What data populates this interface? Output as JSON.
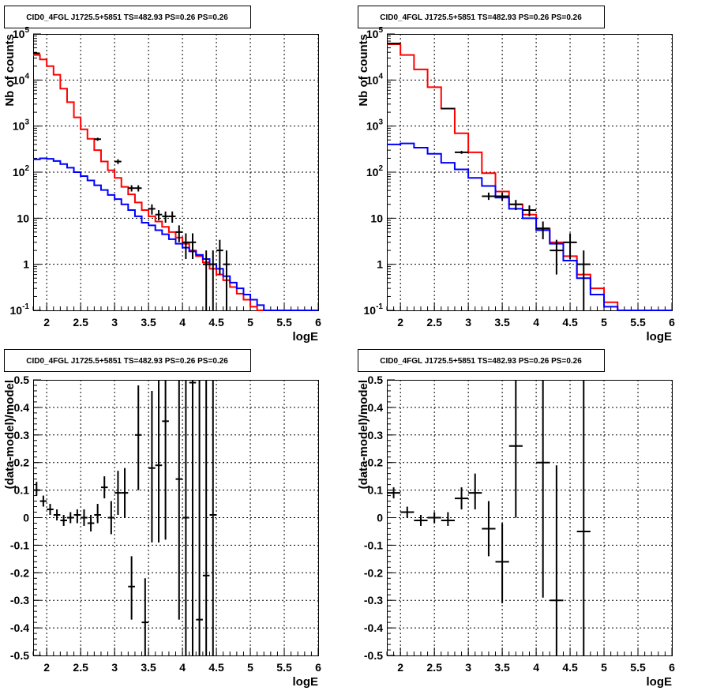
{
  "chart_data": [
    {
      "type": "histogram",
      "title": "CID0_4FGL J1725.5+5851 TS=482.93 PS=0.26 PS=0.26",
      "xlabel": "logE",
      "ylabel": "Nb of counts",
      "xlim": [
        1.8,
        6.0
      ],
      "ylim": [
        0.1,
        100000
      ],
      "yscale": "log",
      "grid": true,
      "x_ticks": [
        "2",
        "2.5",
        "3",
        "3.5",
        "4",
        "4.5",
        "5",
        "5.5",
        "6"
      ],
      "y_ticks": [
        "10^-1",
        "1",
        "10",
        "10^2",
        "10^3",
        "10^4",
        "10^5"
      ],
      "bin_edges": [
        1.8,
        1.9,
        2.0,
        2.1,
        2.2,
        2.3,
        2.4,
        2.5,
        2.6,
        2.7,
        2.8,
        2.9,
        3.0,
        3.1,
        3.2,
        3.3,
        3.4,
        3.5,
        3.6,
        3.7,
        3.8,
        3.9,
        4.0,
        4.1,
        4.2,
        4.3,
        4.4,
        4.5,
        4.6,
        4.7,
        4.8,
        4.9,
        5.0,
        5.1,
        5.2,
        5.3,
        5.4,
        5.5,
        5.6,
        5.7,
        5.8,
        5.9,
        6.0
      ],
      "series": [
        {
          "color": "#ff0000",
          "style": "step",
          "values": [
            35000,
            28000,
            20000,
            13000,
            6500,
            3300,
            1550,
            850,
            530,
            300,
            170,
            110,
            75,
            48,
            33,
            22,
            15,
            11,
            8.5,
            6.5,
            5,
            3.8,
            2.8,
            2.0,
            1.5,
            1.1,
            0.8,
            0.6,
            0.45,
            0.32,
            0.23,
            0.17,
            0.12,
            0.1,
            0.1,
            0.1,
            0.1,
            0.1,
            0.1,
            0.1,
            0.1,
            0.1
          ]
        },
        {
          "color": "#0000ff",
          "style": "step",
          "values": [
            190,
            200,
            195,
            175,
            150,
            125,
            100,
            82,
            66,
            52,
            41,
            32,
            26,
            20,
            15,
            11,
            8,
            7,
            5.5,
            4.5,
            3.5,
            2.8,
            2.3,
            1.9,
            1.6,
            1.3,
            1.0,
            0.8,
            0.55,
            0.4,
            0.3,
            0.22,
            0.17,
            0.13,
            0.1,
            0.1,
            0.1,
            0.1,
            0.1,
            0.1,
            0.1,
            0.1
          ]
        }
      ],
      "points": [
        {
          "x": 1.85,
          "y": 38000,
          "xerr": 0.05,
          "ylo": 37000,
          "yhi": 39000
        },
        {
          "x": 2.75,
          "y": 520,
          "xerr": 0.05,
          "ylo": 480,
          "yhi": 560
        },
        {
          "x": 3.05,
          "y": 170,
          "xerr": 0.05,
          "ylo": 150,
          "yhi": 190
        },
        {
          "x": 3.25,
          "y": 45,
          "xerr": 0.05,
          "ylo": 38,
          "yhi": 52
        },
        {
          "x": 3.35,
          "y": 45,
          "xerr": 0.05,
          "ylo": 38,
          "yhi": 52
        },
        {
          "x": 3.55,
          "y": 16,
          "xerr": 0.05,
          "ylo": 12,
          "yhi": 20
        },
        {
          "x": 3.65,
          "y": 12,
          "xerr": 0.05,
          "ylo": 9,
          "yhi": 15
        },
        {
          "x": 3.75,
          "y": 11,
          "xerr": 0.05,
          "ylo": 8,
          "yhi": 14
        },
        {
          "x": 3.85,
          "y": 11,
          "xerr": 0.05,
          "ylo": 8,
          "yhi": 14
        },
        {
          "x": 3.95,
          "y": 5,
          "xerr": 0.05,
          "ylo": 3,
          "yhi": 7
        },
        {
          "x": 4.05,
          "y": 3,
          "xerr": 0.05,
          "ylo": 1.3,
          "yhi": 4.7
        },
        {
          "x": 4.15,
          "y": 3,
          "xerr": 0.05,
          "ylo": 1.3,
          "yhi": 4.7
        },
        {
          "x": 4.35,
          "y": 1,
          "xerr": 0.05,
          "ylo": 0.1,
          "yhi": 2
        },
        {
          "x": 4.45,
          "y": 1,
          "xerr": 0.05,
          "ylo": 0.1,
          "yhi": 2
        },
        {
          "x": 4.55,
          "y": 2,
          "xerr": 0.05,
          "ylo": 0.6,
          "yhi": 3.4
        },
        {
          "x": 4.65,
          "y": 1,
          "xerr": 0.05,
          "ylo": 0.1,
          "yhi": 2
        }
      ]
    },
    {
      "type": "histogram",
      "title": "CID0_4FGL J1725.5+5851 TS=482.93 PS=0.26 PS=0.26",
      "xlabel": "logE",
      "ylabel": "Nb of counts",
      "xlim": [
        1.8,
        6.0
      ],
      "ylim": [
        0.1,
        100000
      ],
      "yscale": "log",
      "grid": true,
      "x_ticks": [
        "2",
        "2.5",
        "3",
        "3.5",
        "4",
        "4.5",
        "5",
        "5.5",
        "6"
      ],
      "y_ticks": [
        "10^-1",
        "1",
        "10",
        "10^2",
        "10^3",
        "10^4",
        "10^5"
      ],
      "bin_edges": [
        1.8,
        2.0,
        2.2,
        2.4,
        2.6,
        2.8,
        3.0,
        3.2,
        3.4,
        3.6,
        3.8,
        4.0,
        4.2,
        4.4,
        4.6,
        4.8,
        5.0,
        5.2,
        5.4,
        5.6,
        5.8,
        6.0
      ],
      "series": [
        {
          "color": "#ff0000",
          "style": "step",
          "values": [
            60000,
            35000,
            17000,
            7000,
            2400,
            700,
            270,
            95,
            38,
            20,
            12,
            6,
            3,
            1.5,
            0.6,
            0.3,
            0.15,
            0.1,
            0.1,
            0.1,
            0.1
          ]
        },
        {
          "color": "#0000ff",
          "style": "step",
          "values": [
            400,
            420,
            340,
            250,
            160,
            115,
            75,
            50,
            28,
            16,
            10,
            5.5,
            2.8,
            1.2,
            0.5,
            0.22,
            0.12,
            0.1,
            0.1,
            0.1,
            0.1
          ]
        }
      ],
      "points": [
        {
          "x": 1.9,
          "y": 62000,
          "xerr": 0.1,
          "ylo": 61000,
          "yhi": 63000
        },
        {
          "x": 2.7,
          "y": 2400,
          "xerr": 0.1,
          "ylo": 2350,
          "yhi": 2450
        },
        {
          "x": 2.9,
          "y": 270,
          "xerr": 0.1,
          "ylo": 250,
          "yhi": 290
        },
        {
          "x": 3.3,
          "y": 30,
          "xerr": 0.1,
          "ylo": 25,
          "yhi": 36
        },
        {
          "x": 3.5,
          "y": 30,
          "xerr": 0.1,
          "ylo": 24,
          "yhi": 36
        },
        {
          "x": 3.7,
          "y": 20,
          "xerr": 0.1,
          "ylo": 15,
          "yhi": 25
        },
        {
          "x": 3.9,
          "y": 15,
          "xerr": 0.1,
          "ylo": 11,
          "yhi": 19
        },
        {
          "x": 4.1,
          "y": 6,
          "xerr": 0.1,
          "ylo": 3.5,
          "yhi": 8.5
        },
        {
          "x": 4.3,
          "y": 2,
          "xerr": 0.1,
          "ylo": 0.6,
          "yhi": 3.4
        },
        {
          "x": 4.5,
          "y": 3,
          "xerr": 0.1,
          "ylo": 1.3,
          "yhi": 4.7
        },
        {
          "x": 4.7,
          "y": 1,
          "xerr": 0.1,
          "ylo": 0.1,
          "yhi": 2
        }
      ]
    },
    {
      "type": "scatter",
      "title": "CID0_4FGL J1725.5+5851 TS=482.93 PS=0.26 PS=0.26",
      "xlabel": "logE",
      "ylabel": "(data-model)/model",
      "xlim": [
        1.8,
        6.0
      ],
      "ylim": [
        -0.5,
        0.5
      ],
      "grid": true,
      "x_ticks": [
        "2",
        "2.5",
        "3",
        "3.5",
        "4",
        "4.5",
        "5",
        "5.5",
        "6"
      ],
      "y_ticks": [
        "-0.5",
        "-0.4",
        "-0.3",
        "-0.2",
        "-0.1",
        "0",
        "0.1",
        "0.2",
        "0.3",
        "0.4",
        "0.5"
      ],
      "points": [
        {
          "x": 1.85,
          "y": 0.1,
          "xerr": 0.05,
          "ylo": 0.08,
          "yhi": 0.13
        },
        {
          "x": 1.95,
          "y": 0.06,
          "xerr": 0.05,
          "ylo": 0.04,
          "yhi": 0.08
        },
        {
          "x": 2.05,
          "y": 0.03,
          "xerr": 0.05,
          "ylo": 0.01,
          "yhi": 0.05
        },
        {
          "x": 2.15,
          "y": 0.01,
          "xerr": 0.05,
          "ylo": -0.01,
          "yhi": 0.03
        },
        {
          "x": 2.25,
          "y": -0.01,
          "xerr": 0.05,
          "ylo": -0.03,
          "yhi": 0.01
        },
        {
          "x": 2.35,
          "y": 0.0,
          "xerr": 0.05,
          "ylo": -0.02,
          "yhi": 0.02
        },
        {
          "x": 2.45,
          "y": 0.01,
          "xerr": 0.05,
          "ylo": -0.02,
          "yhi": 0.03
        },
        {
          "x": 2.55,
          "y": 0.0,
          "xerr": 0.05,
          "ylo": -0.03,
          "yhi": 0.03
        },
        {
          "x": 2.65,
          "y": -0.02,
          "xerr": 0.05,
          "ylo": -0.05,
          "yhi": 0.01
        },
        {
          "x": 2.75,
          "y": 0.01,
          "xerr": 0.05,
          "ylo": -0.02,
          "yhi": 0.05
        },
        {
          "x": 2.85,
          "y": 0.11,
          "xerr": 0.05,
          "ylo": 0.07,
          "yhi": 0.15
        },
        {
          "x": 2.95,
          "y": 0.0,
          "xerr": 0.05,
          "ylo": -0.06,
          "yhi": 0.06
        },
        {
          "x": 3.05,
          "y": 0.09,
          "xerr": 0.05,
          "ylo": 0.01,
          "yhi": 0.17
        },
        {
          "x": 3.15,
          "y": 0.09,
          "xerr": 0.05,
          "ylo": 0.0,
          "yhi": 0.18
        },
        {
          "x": 3.25,
          "y": -0.25,
          "xerr": 0.05,
          "ylo": -0.37,
          "yhi": -0.14
        },
        {
          "x": 3.35,
          "y": 0.3,
          "xerr": 0.05,
          "ylo": 0.1,
          "yhi": 0.48
        },
        {
          "x": 3.45,
          "y": -0.38,
          "xerr": 0.05,
          "ylo": -0.5,
          "yhi": -0.22
        },
        {
          "x": 3.55,
          "y": 0.18,
          "xerr": 0.05,
          "ylo": -0.09,
          "yhi": 0.46
        },
        {
          "x": 3.65,
          "y": 0.19,
          "xerr": 0.05,
          "ylo": -0.09,
          "yhi": 0.5
        },
        {
          "x": 3.75,
          "y": 0.35,
          "xerr": 0.05,
          "ylo": -0.08,
          "yhi": 0.5
        },
        {
          "x": 3.95,
          "y": 0.14,
          "xerr": 0.05,
          "ylo": -0.37,
          "yhi": 0.5
        },
        {
          "x": 4.05,
          "y": 0.0,
          "xerr": 0.05,
          "ylo": -0.5,
          "yhi": 0.5
        },
        {
          "x": 4.15,
          "y": 0.49,
          "xerr": 0.05,
          "ylo": -0.5,
          "yhi": 0.5
        },
        {
          "x": 4.25,
          "y": -0.37,
          "xerr": 0.05,
          "ylo": -0.5,
          "yhi": 0.5
        },
        {
          "x": 4.35,
          "y": -0.21,
          "xerr": 0.05,
          "ylo": -0.5,
          "yhi": 0.5
        },
        {
          "x": 4.45,
          "y": 0.01,
          "xerr": 0.05,
          "ylo": -0.5,
          "yhi": 0.5
        }
      ]
    },
    {
      "type": "scatter",
      "title": "CID0_4FGL J1725.5+5851 TS=482.93 PS=0.26 PS=0.26",
      "xlabel": "logE",
      "ylabel": "(data-model)/model",
      "xlim": [
        1.8,
        6.0
      ],
      "ylim": [
        -0.5,
        0.5
      ],
      "grid": true,
      "x_ticks": [
        "2",
        "2.5",
        "3",
        "3.5",
        "4",
        "4.5",
        "5",
        "5.5",
        "6"
      ],
      "y_ticks": [
        "-0.5",
        "-0.4",
        "-0.3",
        "-0.2",
        "-0.1",
        "0",
        "0.1",
        "0.2",
        "0.3",
        "0.4",
        "0.5"
      ],
      "points": [
        {
          "x": 1.9,
          "y": 0.09,
          "xerr": 0.1,
          "ylo": 0.07,
          "yhi": 0.11
        },
        {
          "x": 2.1,
          "y": 0.02,
          "xerr": 0.1,
          "ylo": 0.0,
          "yhi": 0.04
        },
        {
          "x": 2.3,
          "y": -0.01,
          "xerr": 0.1,
          "ylo": -0.03,
          "yhi": 0.01
        },
        {
          "x": 2.5,
          "y": 0.0,
          "xerr": 0.1,
          "ylo": -0.02,
          "yhi": 0.02
        },
        {
          "x": 2.7,
          "y": -0.01,
          "xerr": 0.1,
          "ylo": -0.03,
          "yhi": 0.02
        },
        {
          "x": 2.9,
          "y": 0.07,
          "xerr": 0.1,
          "ylo": 0.03,
          "yhi": 0.11
        },
        {
          "x": 3.1,
          "y": 0.09,
          "xerr": 0.1,
          "ylo": 0.03,
          "yhi": 0.16
        },
        {
          "x": 3.3,
          "y": -0.04,
          "xerr": 0.1,
          "ylo": -0.14,
          "yhi": 0.06
        },
        {
          "x": 3.5,
          "y": -0.16,
          "xerr": 0.1,
          "ylo": -0.31,
          "yhi": -0.02
        },
        {
          "x": 3.7,
          "y": 0.26,
          "xerr": 0.1,
          "ylo": 0.0,
          "yhi": 0.5
        },
        {
          "x": 4.1,
          "y": 0.2,
          "xerr": 0.1,
          "ylo": -0.29,
          "yhi": 0.5
        },
        {
          "x": 4.3,
          "y": -0.3,
          "xerr": 0.1,
          "ylo": -0.5,
          "yhi": 0.19
        },
        {
          "x": 4.7,
          "y": -0.05,
          "xerr": 0.1,
          "ylo": -0.5,
          "yhi": 0.5
        }
      ]
    }
  ]
}
